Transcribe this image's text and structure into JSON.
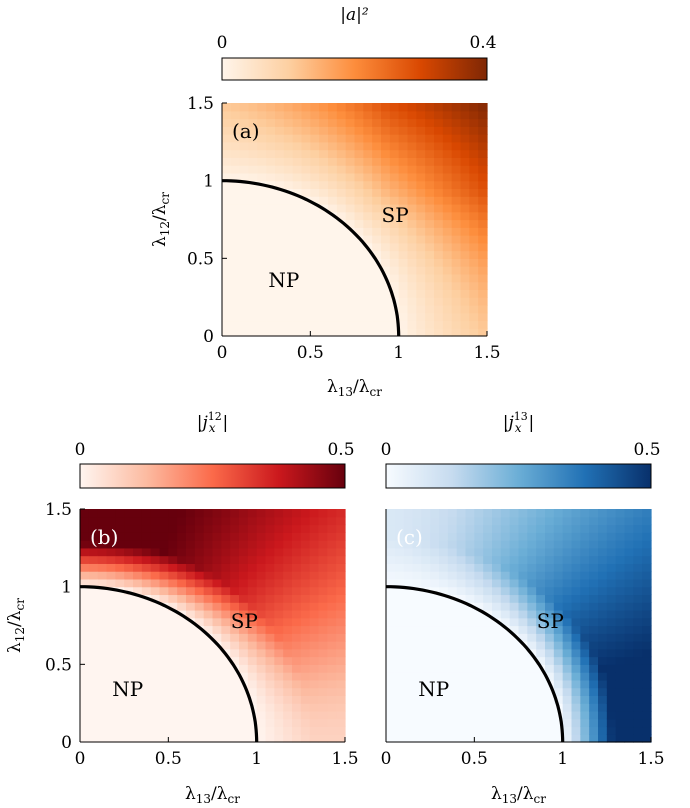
{
  "chart_data": [
    {
      "type": "heatmap",
      "panel_label": "(a)",
      "colorbar_label": "|a|²",
      "colorbar_range": [
        0,
        0.4
      ],
      "colorbar_ticks": [
        "0",
        "0.4"
      ],
      "colormap": [
        "#fff5eb",
        "#fdd0a2",
        "#fd8d3c",
        "#d94801",
        "#7f2704"
      ],
      "xlabel": "λ13/λcr",
      "ylabel": "λ12/λcr",
      "xlim": [
        0,
        1.5
      ],
      "ylim": [
        0,
        1.5
      ],
      "xticks": [
        "0",
        "0.5",
        "1",
        "1.5"
      ],
      "yticks": [
        "0",
        "0.5",
        "1",
        "1.5"
      ],
      "regions": [
        {
          "label": "NP",
          "x": 0.35,
          "y": 0.36
        },
        {
          "label": "SP",
          "x": 0.98,
          "y": 0.78
        }
      ],
      "boundary": {
        "shape": "quarter-circle",
        "radius": 1.0
      },
      "field": {
        "quantity": "|a|^2",
        "max_at": [
          1.5,
          1.5
        ],
        "max_value": 0.4
      }
    },
    {
      "type": "heatmap",
      "panel_label": "(b)",
      "colorbar_label": "|j_x^12|",
      "colorbar_range": [
        0,
        0.5
      ],
      "colorbar_ticks": [
        "0",
        "0.5"
      ],
      "colormap": [
        "#fff5f0",
        "#fcbba1",
        "#fb6a4a",
        "#cb181d",
        "#67000d"
      ],
      "xlabel": "λ13/λcr",
      "ylabel": "λ12/λcr",
      "xlim": [
        0,
        1.5
      ],
      "ylim": [
        0,
        1.5
      ],
      "xticks": [
        "0",
        "0.5",
        "1",
        "1.5"
      ],
      "yticks": [
        "0",
        "0.5",
        "1",
        "1.5"
      ],
      "regions": [
        {
          "label": "NP",
          "x": 0.27,
          "y": 0.34
        },
        {
          "label": "SP",
          "x": 0.93,
          "y": 0.78
        }
      ],
      "boundary": {
        "shape": "quarter-circle",
        "radius": 1.0
      },
      "field": {
        "quantity": "|j_x^12|",
        "max_at": [
          0.0,
          1.5
        ],
        "max_value": 0.5
      }
    },
    {
      "type": "heatmap",
      "panel_label": "(c)",
      "colorbar_label": "|j_x^13|",
      "colorbar_range": [
        0,
        0.5
      ],
      "colorbar_ticks": [
        "0",
        "0.5"
      ],
      "colormap": [
        "#f7fbff",
        "#c6dbef",
        "#6baed6",
        "#2171b5",
        "#08306b"
      ],
      "xlabel": "λ13/λcr",
      "ylabel": "",
      "xlim": [
        0,
        1.5
      ],
      "ylim": [
        0,
        1.5
      ],
      "xticks": [
        "0",
        "0.5",
        "1",
        "1.5"
      ],
      "yticks": [],
      "regions": [
        {
          "label": "NP",
          "x": 0.27,
          "y": 0.34
        },
        {
          "label": "SP",
          "x": 0.93,
          "y": 0.78
        }
      ],
      "boundary": {
        "shape": "quarter-circle",
        "radius": 1.0
      },
      "field": {
        "quantity": "|j_x^13|",
        "max_at": [
          1.5,
          0.0
        ],
        "max_value": 0.5
      }
    }
  ]
}
